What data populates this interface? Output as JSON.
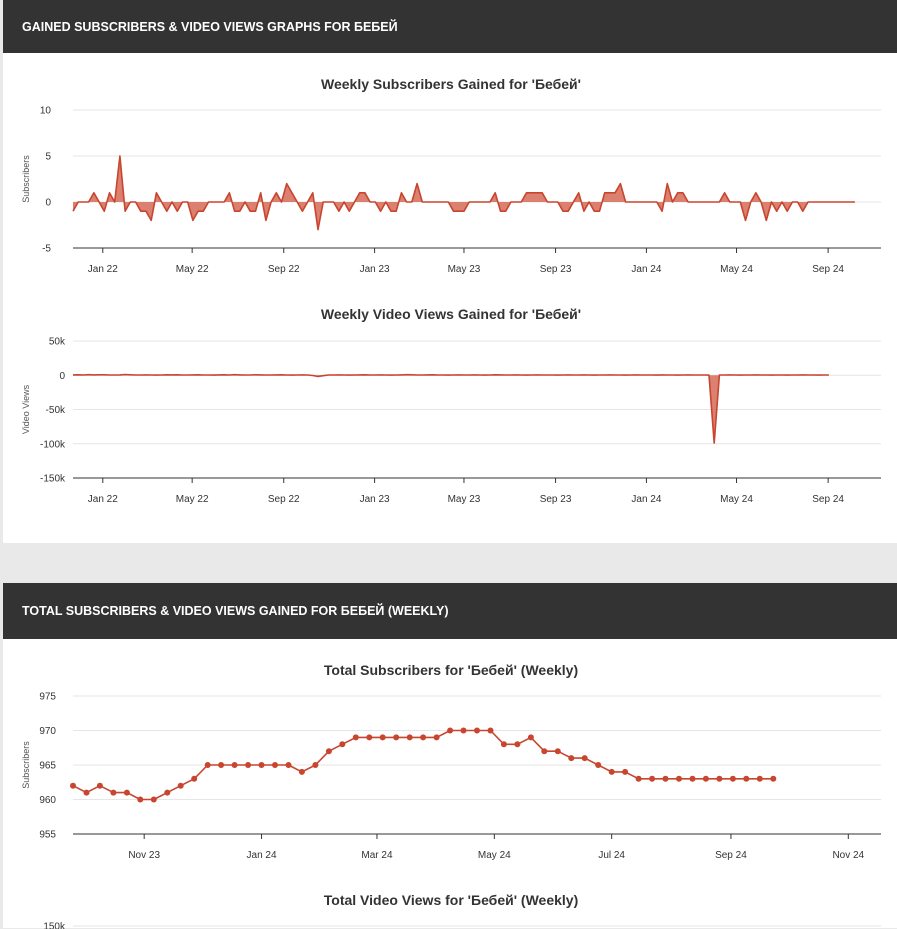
{
  "sections": [
    {
      "title": "GAINED SUBSCRIBERS & VIDEO VIEWS GRAPHS FOR БЕБЕЙ"
    },
    {
      "title": "TOTAL SUBSCRIBERS & VIDEO VIEWS GAINED FOR БЕБЕЙ (WEEKLY)"
    }
  ],
  "colors": {
    "series": "#c8452f",
    "fill": "#d66a57",
    "grid": "#e6e6e6",
    "axis": "#333333",
    "header": "#333333"
  },
  "chart_data": [
    {
      "id": "weekly-subs",
      "type": "area",
      "title": "Weekly Subscribers Gained for 'Бебей'",
      "ylabel": "Subscribers",
      "ylim": [
        -5,
        10
      ],
      "yticks": [
        "10",
        "5",
        "0",
        "-5"
      ],
      "ytick_values": [
        10,
        5,
        0,
        -5
      ],
      "xticks": [
        "Jan 22",
        "May 22",
        "Sep 22",
        "Jan 23",
        "May 23",
        "Sep 23",
        "Jan 24",
        "May 24",
        "Sep 24"
      ],
      "x_start": "2021-11-22",
      "x_interval_weeks": 1,
      "values": [
        -1,
        0,
        0,
        0,
        1,
        0,
        -1,
        1,
        0,
        5,
        -1,
        0,
        0,
        -1,
        -1,
        -2,
        1,
        0,
        -1,
        0,
        -1,
        0,
        0,
        -2,
        -1,
        -1,
        0,
        0,
        0,
        0,
        1,
        -1,
        -1,
        0,
        -1,
        -1,
        1,
        -2,
        0,
        1,
        0,
        2,
        1,
        0,
        -1,
        0,
        1,
        -3,
        0,
        0,
        0,
        -1,
        0,
        -1,
        0,
        1,
        1,
        0,
        0,
        -1,
        0,
        -1,
        -1,
        1,
        0,
        0,
        2,
        0,
        0,
        0,
        0,
        0,
        0,
        -1,
        -1,
        -1,
        0,
        0,
        0,
        0,
        0,
        1,
        -1,
        -1,
        0,
        0,
        0,
        1,
        1,
        1,
        1,
        0,
        0,
        0,
        -1,
        -1,
        0,
        1,
        -1,
        0,
        -1,
        -1,
        1,
        1,
        1,
        2,
        0,
        0,
        0,
        0,
        0,
        0,
        0,
        -1,
        2,
        0,
        1,
        1,
        0,
        0,
        0,
        0,
        0,
        0,
        0,
        1,
        0,
        0,
        0,
        -2,
        0,
        1,
        0,
        -2,
        0,
        -1,
        0,
        -1,
        0,
        0,
        -1,
        0,
        0,
        0,
        0,
        0,
        0,
        0,
        0,
        0,
        0
      ],
      "x_range": [
        "2021-11-22",
        "2024-11-11"
      ]
    },
    {
      "id": "weekly-views",
      "type": "area",
      "title": "Weekly Video Views Gained for 'Бебей'",
      "ylabel": "Video Views",
      "ylim": [
        -150000,
        50000
      ],
      "yticks": [
        "50k",
        "0",
        "-50k",
        "-100k",
        "-150k"
      ],
      "ytick_values": [
        50000,
        0,
        -50000,
        -100000,
        -150000
      ],
      "xticks": [
        "Jan 22",
        "May 22",
        "Sep 22",
        "Jan 23",
        "May 23",
        "Sep 23",
        "Jan 24",
        "May 24",
        "Sep 24"
      ],
      "x_start": "2021-11-22",
      "x_interval_weeks": 1,
      "values": [
        500,
        600,
        400,
        800,
        500,
        700,
        600,
        300,
        400,
        500,
        900,
        600,
        400,
        300,
        500,
        400,
        200,
        300,
        600,
        500,
        700,
        400,
        300,
        500,
        600,
        400,
        300,
        200,
        500,
        600,
        400,
        800,
        500,
        300,
        400,
        600,
        500,
        300,
        400,
        500,
        600,
        300,
        200,
        400,
        500,
        300,
        -400,
        -1800,
        -600,
        300,
        400,
        500,
        300,
        200,
        400,
        500,
        600,
        300,
        400,
        500,
        300,
        200,
        400,
        500,
        800,
        600,
        400,
        300,
        500,
        700,
        400,
        300,
        200,
        400,
        500,
        300,
        400,
        500,
        300,
        200,
        400,
        600,
        500,
        300,
        400,
        500,
        300,
        200,
        400,
        500,
        300,
        400,
        300,
        200,
        400,
        500,
        300,
        400,
        500,
        300,
        200,
        400,
        300,
        500,
        400,
        300,
        200,
        400,
        500,
        300,
        400,
        300,
        200,
        500,
        400,
        300,
        200,
        400,
        500,
        300,
        400,
        300,
        200,
        -99000,
        300,
        400,
        500,
        300,
        200,
        400,
        300,
        500,
        400,
        300,
        200,
        400,
        300,
        200,
        400,
        300,
        500,
        400,
        300,
        200,
        400,
        300
      ],
      "x_range": [
        "2021-11-22",
        "2024-11-11"
      ]
    },
    {
      "id": "total-subs",
      "type": "line",
      "title": "Total Subscribers for 'Бебей' (Weekly)",
      "ylabel": "Subscribers",
      "ylim": [
        955,
        975
      ],
      "yticks": [
        "975",
        "970",
        "965",
        "960",
        "955"
      ],
      "ytick_values": [
        975,
        970,
        965,
        960,
        955
      ],
      "xticks": [
        "Nov 23",
        "Jan 24",
        "Mar 24",
        "May 24",
        "Jul 24",
        "Sep 24",
        "Nov 24"
      ],
      "x_start": "2023-09-25",
      "x_interval_weeks": 1,
      "values": [
        962,
        961,
        962,
        961,
        961,
        960,
        960,
        961,
        962,
        963,
        965,
        965,
        965,
        965,
        965,
        965,
        965,
        964,
        965,
        967,
        968,
        969,
        969,
        969,
        969,
        969,
        969,
        969,
        970,
        970,
        970,
        970,
        968,
        968,
        969,
        967,
        967,
        966,
        966,
        965,
        964,
        964,
        963,
        963,
        963,
        963,
        963,
        963,
        963,
        963,
        963,
        963,
        963
      ],
      "x_range": [
        "2023-09-25",
        "2024-11-18"
      ]
    },
    {
      "id": "total-views",
      "type": "line",
      "title": "Total Video Views for 'Бебей' (Weekly)",
      "yticks": [
        "150k"
      ],
      "ytick_values": [
        150000
      ]
    }
  ]
}
